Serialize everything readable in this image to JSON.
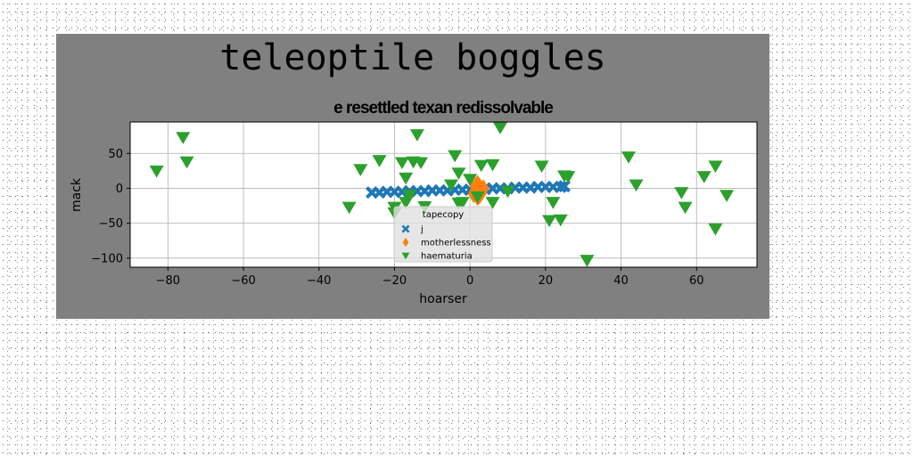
{
  "figure": {
    "suptitle": "teleoptile boggles",
    "background": "#808080"
  },
  "chart_data": {
    "type": "scatter",
    "title": "e resettled texan redissolvable",
    "xlabel": "hoarser",
    "ylabel": "mack",
    "xlim": [
      -90,
      76
    ],
    "ylim": [
      -113,
      95
    ],
    "xticks": [
      -80,
      -60,
      -40,
      -20,
      0,
      20,
      40,
      60
    ],
    "yticks": [
      -100,
      -50,
      0,
      50
    ],
    "grid": true,
    "legend": {
      "title": "tapecopy",
      "placement": "lower-center"
    },
    "series": [
      {
        "name": "j",
        "marker": "X",
        "color": "#1f77b4",
        "x": [
          -26,
          -24,
          -22,
          -20,
          -18,
          -16,
          -14,
          -12,
          -10,
          -8,
          -6,
          -4,
          -2,
          0,
          2,
          4,
          6,
          8,
          10,
          12,
          14,
          16,
          18,
          20,
          22,
          24,
          25
        ],
        "y": [
          -6,
          -6,
          -5,
          -5,
          -5,
          -4,
          -4,
          -4,
          -3,
          -3,
          -3,
          -2,
          -2,
          -2,
          -1,
          -1,
          0,
          0,
          0,
          1,
          1,
          1,
          2,
          2,
          2,
          2,
          3
        ]
      },
      {
        "name": "motherlessness",
        "marker": "d",
        "color": "#ff7f0e",
        "x": [
          1,
          1.5,
          2,
          2.5,
          3,
          3.5,
          2,
          2.5,
          1.5,
          3
        ],
        "y": [
          -8,
          -3,
          -12,
          2,
          -6,
          0,
          6,
          -10,
          3,
          -4
        ]
      },
      {
        "name": "haematuria",
        "marker": "v",
        "color": "#2ca02c",
        "x": [
          -83,
          -76,
          -75,
          -32,
          -29,
          -24,
          -20,
          -18,
          -17,
          -15,
          -14,
          -13,
          -16,
          -17,
          -12,
          -4,
          -3,
          -3,
          -5,
          0,
          3,
          6,
          6,
          8,
          10,
          19,
          21,
          22,
          24,
          25,
          26,
          31,
          42,
          44,
          56,
          57,
          62,
          65,
          65,
          68,
          -20,
          2,
          -2
        ],
        "y": [
          25,
          73,
          38,
          -27,
          27,
          40,
          -27,
          37,
          15,
          38,
          77,
          37,
          -10,
          -20,
          -26,
          47,
          22,
          -21,
          5,
          13,
          33,
          34,
          -20,
          87,
          -4,
          32,
          -46,
          -20,
          -45,
          18,
          17,
          -103,
          45,
          5,
          -6,
          -27,
          17,
          32,
          -58,
          -10,
          -35,
          -12,
          -20
        ]
      }
    ]
  }
}
